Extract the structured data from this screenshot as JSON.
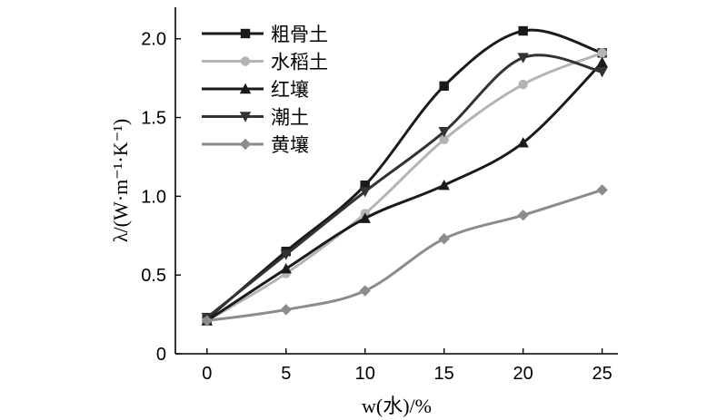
{
  "chart_data": {
    "type": "line",
    "xlabel": "w(水)/%",
    "ylabel": "λ/(W·m⁻¹·K⁻¹)",
    "x": [
      0,
      5,
      10,
      15,
      20,
      25
    ],
    "xlim": [
      -2,
      26
    ],
    "ylim": [
      0,
      2.2
    ],
    "xticks": [
      "0",
      "5",
      "10",
      "15",
      "20",
      "25"
    ],
    "yticks": [
      "0",
      "0.5",
      "1.0",
      "1.5",
      "2.0"
    ],
    "ytick_values": [
      0,
      0.5,
      1.0,
      1.5,
      2.0
    ],
    "grid": false,
    "legend_position": "top-left",
    "series": [
      {
        "name": "粗骨土",
        "marker": "square",
        "color": "#1a1a1a",
        "values": [
          0.22,
          0.65,
          1.07,
          1.7,
          2.05,
          1.91
        ]
      },
      {
        "name": "水稻土",
        "marker": "circle",
        "color": "#b4b4b4",
        "values": [
          0.21,
          0.51,
          0.89,
          1.36,
          1.71,
          1.91
        ]
      },
      {
        "name": "红壤",
        "marker": "triangle-up",
        "color": "#1a1a1a",
        "values": [
          0.21,
          0.54,
          0.86,
          1.07,
          1.34,
          1.85
        ]
      },
      {
        "name": "潮土",
        "marker": "triangle-down",
        "color": "#333333",
        "values": [
          0.23,
          0.63,
          1.03,
          1.41,
          1.88,
          1.79
        ]
      },
      {
        "name": "黄壤",
        "marker": "diamond",
        "color": "#8c8c8c",
        "values": [
          0.21,
          0.28,
          0.4,
          0.73,
          0.88,
          1.04
        ]
      }
    ]
  }
}
